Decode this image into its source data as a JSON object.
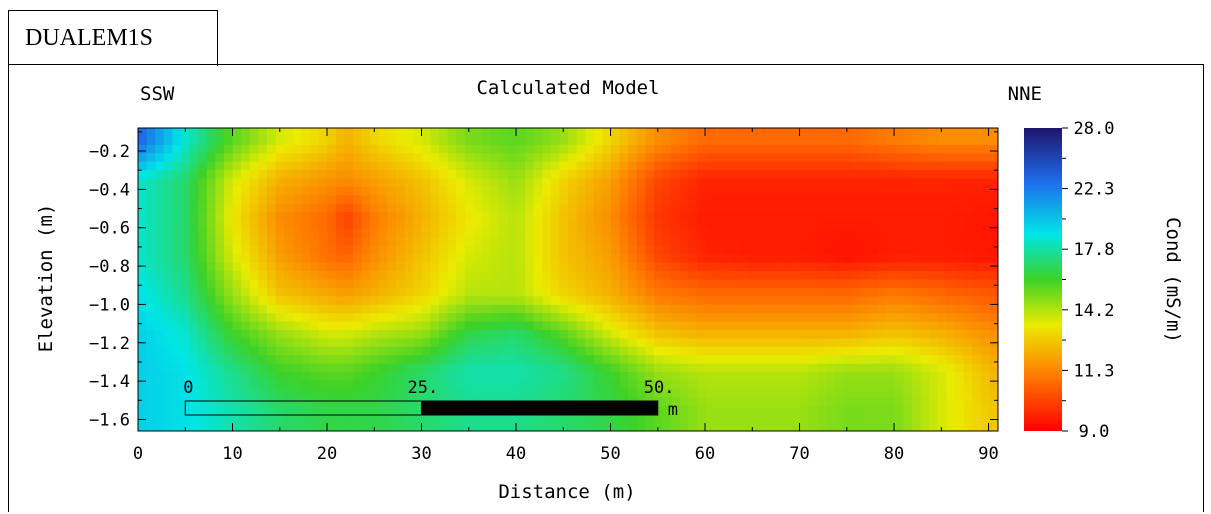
{
  "panel": {
    "tab_label": "DUALEM1S"
  },
  "chart_data": {
    "type": "heatmap",
    "title": "Calculated Model",
    "left_label": "SSW",
    "right_label": "NNE",
    "xlabel": "Distance (m)",
    "ylabel": "Elevation (m)",
    "xlim": [
      0,
      91
    ],
    "ylim": [
      -1.66,
      -0.08
    ],
    "x_ticks": [
      "0",
      "10",
      "20",
      "30",
      "40",
      "50",
      "60",
      "70",
      "80",
      "90"
    ],
    "y_ticks": [
      "-0.2",
      "-0.4",
      "-0.6",
      "-0.8",
      "-1.0",
      "-1.2",
      "-1.4",
      "-1.6"
    ],
    "colorbar": {
      "label": "Cond (mS/m)",
      "min": 9.0,
      "max": 28.0,
      "tick_labels": [
        "28.0",
        "22.3",
        "17.8",
        "14.2",
        "11.3",
        "9.0"
      ]
    },
    "scale_bar": {
      "labels": [
        "0",
        "25.",
        "50."
      ],
      "unit": "m",
      "start": 5,
      "mid": 30,
      "end": 55
    },
    "x_samples": [
      0,
      5,
      10,
      15,
      20,
      22,
      25,
      30,
      35,
      40,
      45,
      50,
      55,
      60,
      65,
      70,
      75,
      80,
      85,
      91
    ],
    "y_samples": [
      -0.15,
      -0.35,
      -0.55,
      -0.75,
      -0.95,
      -1.15,
      -1.35,
      -1.55
    ],
    "values": [
      [
        25,
        21,
        18,
        16,
        15,
        14,
        15,
        16,
        17.5,
        18,
        17,
        15,
        13,
        12,
        12,
        12,
        12,
        12.5,
        13,
        13
      ],
      [
        21,
        19.5,
        16,
        14,
        13.2,
        13,
        13.5,
        14.5,
        16,
        17,
        15,
        13.5,
        11,
        10,
        10,
        10,
        10,
        10,
        10,
        10
      ],
      [
        21,
        19.5,
        15.5,
        13,
        12,
        10.8,
        12.5,
        14,
        15.5,
        16.5,
        14.5,
        13,
        10.5,
        9.8,
        9.8,
        9.8,
        9.8,
        9.8,
        9.8,
        9.6
      ],
      [
        21,
        19.5,
        16,
        13.5,
        12.2,
        11.8,
        13,
        14.5,
        16,
        16.5,
        14.5,
        13.5,
        11,
        10,
        9.8,
        9.8,
        9.5,
        9.8,
        9.8,
        9.6
      ],
      [
        21.5,
        20,
        17,
        14.5,
        13.8,
        13.5,
        14,
        15,
        16.5,
        16.5,
        15,
        14,
        12.5,
        12,
        12,
        12,
        12,
        12.5,
        12,
        11.5
      ],
      [
        22,
        21,
        18.5,
        17,
        16,
        16,
        16.5,
        17,
        19,
        19.5,
        18,
        16,
        14.5,
        14,
        14,
        14,
        14,
        14.5,
        14,
        13
      ],
      [
        22,
        21.5,
        20,
        18.5,
        18,
        18,
        18.5,
        19.5,
        20.5,
        20.5,
        20,
        18.5,
        17,
        16.5,
        16.5,
        16.5,
        17,
        17,
        16,
        14
      ],
      [
        22,
        21.5,
        20.5,
        19.5,
        19,
        19,
        19,
        19.5,
        20,
        20,
        19.5,
        19,
        18,
        17,
        17,
        17,
        17.5,
        17.5,
        16,
        14.5
      ]
    ]
  }
}
